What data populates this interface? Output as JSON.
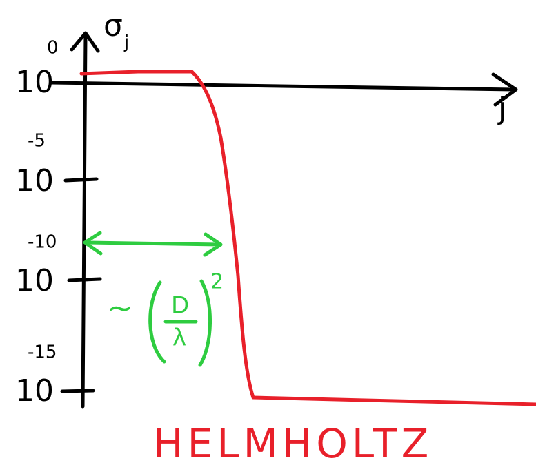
{
  "axes": {
    "y_label": "σ",
    "y_label_sub": "j",
    "x_label": "j",
    "ticks": [
      {
        "base": "10",
        "exponent": "0"
      },
      {
        "base": "10",
        "exponent": "-5"
      },
      {
        "base": "10",
        "exponent": "-10"
      },
      {
        "base": "10",
        "exponent": "-15"
      }
    ]
  },
  "annotation": {
    "prefix": "~",
    "numerator": "D",
    "denominator": "λ",
    "power": "2"
  },
  "caption": "HELMHOLTZ"
}
